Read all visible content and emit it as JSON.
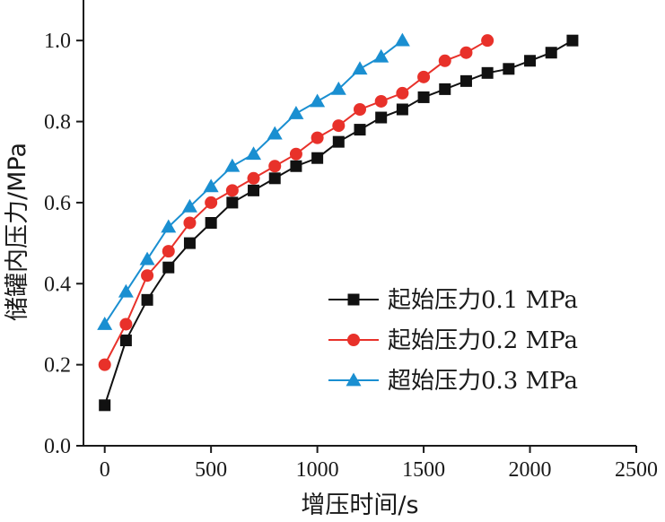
{
  "chart_data": {
    "type": "line",
    "xlabel": "增压时间/s",
    "ylabel": "储罐内压力/MPa",
    "xlim": [
      -100,
      2500
    ],
    "ylim": [
      0.0,
      1.1
    ],
    "xticks": [
      0,
      500,
      1000,
      1500,
      2000,
      2500
    ],
    "xtick_labels": [
      "0",
      "500",
      "1000",
      "1500",
      "2000",
      "2500"
    ],
    "yticks": [
      0.0,
      0.2,
      0.4,
      0.6,
      0.8,
      1.0
    ],
    "ytick_labels": [
      "0.0",
      "0.2",
      "0.4",
      "0.6",
      "0.8",
      "1.0"
    ],
    "grid": false,
    "legend_position": "lower-right",
    "series": [
      {
        "name": "起始压力0.1 MPa",
        "marker": "square",
        "color": "#111111",
        "x": [
          0,
          100,
          200,
          300,
          400,
          500,
          600,
          700,
          800,
          900,
          1000,
          1100,
          1200,
          1300,
          1400,
          1500,
          1600,
          1700,
          1800,
          1900,
          2000,
          2100,
          2200
        ],
        "y": [
          0.1,
          0.26,
          0.36,
          0.44,
          0.5,
          0.55,
          0.6,
          0.63,
          0.66,
          0.69,
          0.71,
          0.75,
          0.78,
          0.81,
          0.83,
          0.86,
          0.88,
          0.9,
          0.92,
          0.93,
          0.95,
          0.97,
          1.0
        ]
      },
      {
        "name": "起始压力0.2 MPa",
        "marker": "circle",
        "color": "#e8312a",
        "x": [
          0,
          100,
          200,
          300,
          400,
          500,
          600,
          700,
          800,
          900,
          1000,
          1100,
          1200,
          1300,
          1400,
          1500,
          1600,
          1700,
          1800
        ],
        "y": [
          0.2,
          0.3,
          0.42,
          0.48,
          0.55,
          0.6,
          0.63,
          0.66,
          0.69,
          0.72,
          0.76,
          0.79,
          0.83,
          0.85,
          0.87,
          0.91,
          0.95,
          0.97,
          1.0
        ]
      },
      {
        "name": "超始压力0.3 MPa",
        "marker": "triangle",
        "color": "#1a8fd1",
        "x": [
          0,
          100,
          200,
          300,
          400,
          500,
          600,
          700,
          800,
          900,
          1000,
          1100,
          1200,
          1300,
          1400
        ],
        "y": [
          0.3,
          0.38,
          0.46,
          0.54,
          0.59,
          0.64,
          0.69,
          0.72,
          0.77,
          0.82,
          0.85,
          0.88,
          0.93,
          0.96,
          1.0
        ]
      }
    ]
  }
}
